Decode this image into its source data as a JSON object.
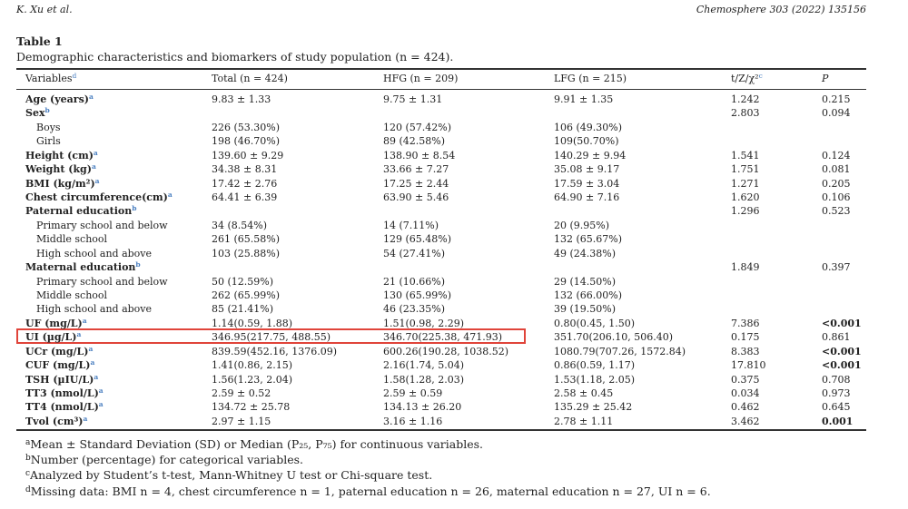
{
  "header": {
    "authors": "K. Xu et al.",
    "journal": "Chemosphere 303 (2022) 135156"
  },
  "table": {
    "title": "Table 1",
    "caption": "Demographic characteristics and biomarkers of study population (n = 424).",
    "columns": [
      {
        "text": "Variables",
        "sup": "d"
      },
      {
        "text": "Total (n = 424)"
      },
      {
        "text": "HFG (n = 209)"
      },
      {
        "text": "LFG (n = 215)"
      },
      {
        "text": "t/Z/χ²",
        "sup": "c"
      },
      {
        "text": "P"
      }
    ],
    "rows": [
      {
        "label": "Age (years)",
        "sup": "a",
        "cells": [
          "9.83 ± 1.33",
          "9.75 ± 1.31",
          "9.91 ± 1.35",
          "1.242",
          "0.215"
        ]
      },
      {
        "label": "Sex",
        "sup": "b",
        "cells": [
          null,
          null,
          null,
          "2.803",
          "0.094"
        ]
      },
      {
        "label": "Boys",
        "cells": [
          "226 (53.30%)",
          "120 (57.42%)",
          "106 (49.30%)",
          null,
          null
        ]
      },
      {
        "label": "Girls",
        "cells": [
          "198 (46.70%)",
          "89 (42.58%)",
          "109(50.70%)",
          null,
          null
        ]
      },
      {
        "label": "Height (cm)",
        "sup": "a",
        "cells": [
          "139.60 ± 9.29",
          "138.90 ± 8.54",
          "140.29 ± 9.94",
          "1.541",
          "0.124"
        ]
      },
      {
        "label": "Weight (kg)",
        "sup": "a",
        "cells": [
          "34.38 ± 8.31",
          "33.66 ± 7.27",
          "35.08 ± 9.17",
          "1.751",
          "0.081"
        ]
      },
      {
        "label": "BMI (kg/m²)",
        "sup": "a",
        "cells": [
          "17.42 ± 2.76",
          "17.25 ± 2.44",
          "17.59 ± 3.04",
          "1.271",
          "0.205"
        ]
      },
      {
        "label": "Chest circumference(cm)",
        "sup": "a",
        "cells": [
          "64.41 ± 6.39",
          "63.90 ± 5.46",
          "64.90 ± 7.16",
          "1.620",
          "0.106"
        ]
      },
      {
        "label": "Paternal education",
        "sup": "b",
        "cells": [
          null,
          null,
          null,
          "1.296",
          "0.523"
        ]
      },
      {
        "label": "Primary school and below",
        "cells": [
          "34 (8.54%)",
          "14 (7.11%)",
          "20 (9.95%)",
          null,
          null
        ]
      },
      {
        "label": "Middle school",
        "cells": [
          "261 (65.58%)",
          "129 (65.48%)",
          "132 (65.67%)",
          null,
          null
        ]
      },
      {
        "label": "High school and above",
        "cells": [
          "103 (25.88%)",
          "54 (27.41%)",
          "49 (24.38%)",
          null,
          null
        ]
      },
      {
        "label": "Maternal education",
        "sup": "b",
        "cells": [
          null,
          null,
          null,
          "1.849",
          "0.397"
        ]
      },
      {
        "label": "Primary school and below",
        "cells": [
          "50 (12.59%)",
          "21 (10.66%)",
          "29 (14.50%)",
          null,
          null
        ]
      },
      {
        "label": "Middle school",
        "cells": [
          "262 (65.99%)",
          "130 (65.99%)",
          "132 (66.00%)",
          null,
          null
        ]
      },
      {
        "label": "High school and above",
        "cells": [
          "85 (21.41%)",
          "46 (23.35%)",
          "39 (19.50%)",
          null,
          null
        ]
      },
      {
        "label": "UF (mg/L)",
        "sup": "a",
        "cells": [
          "1.14(0.59, 1.88)",
          "1.51(0.98, 2.29)",
          "0.80(0.45, 1.50)",
          "7.386",
          "<0.001"
        ]
      },
      {
        "label": "UI (µg/L)",
        "sup": "a",
        "cells": [
          "346.95(217.75, 488.55)",
          "346.70(225.38, 471.93)",
          "351.70(206.10, 506.40)",
          "0.175",
          "0.861"
        ]
      },
      {
        "label": "UCr (mg/L)",
        "sup": "a",
        "cells": [
          "839.59(452.16, 1376.09)",
          "600.26(190.28, 1038.52)",
          "1080.79(707.26, 1572.84)",
          "8.383",
          "<0.001"
        ]
      },
      {
        "label": "CUF (mg/L)",
        "sup": "a",
        "cells": [
          "1.41(0.86, 2.15)",
          "2.16(1.74, 5.04)",
          "0.86(0.59, 1.17)",
          "17.810",
          "<0.001"
        ]
      },
      {
        "label": "TSH (µIU/L)",
        "sup": "a",
        "cells": [
          "1.56(1.23, 2.04)",
          "1.58(1.28, 2.03)",
          "1.53(1.18, 2.05)",
          "0.375",
          "0.708"
        ]
      },
      {
        "label": "TT3 (nmol/L)",
        "sup": "a",
        "cells": [
          "2.59 ± 0.52",
          "2.59 ± 0.59",
          "2.58 ± 0.45",
          "0.034",
          "0.973"
        ]
      },
      {
        "label": "TT4 (nmol/L)",
        "sup": "a",
        "cells": [
          "134.72 ± 25.78",
          "134.13 ± 26.20",
          "135.29 ± 25.42",
          "0.462",
          "0.645"
        ]
      },
      {
        "label": "Tvol (cm³)",
        "sup": "a",
        "cells": [
          "2.97 ± 1.15",
          "3.16 ± 1.16",
          "2.78 ± 1.11",
          "3.462",
          "0.001"
        ]
      }
    ],
    "footnotes": [
      {
        "mark": "a",
        "text": "Mean ± Standard Deviation (SD) or Median (P₂₅, P₇₅) for continuous variables."
      },
      {
        "mark": "b",
        "text": "Number (percentage) for categorical variables."
      },
      {
        "mark": "c",
        "text": "Analyzed by Student’s t-test, Mann-Whitney U test or Chi-square test."
      },
      {
        "mark": "d",
        "text": "Missing data: BMI n = 4, chest circumference n = 1, paternal education n = 26, maternal education n = 27, UI n = 6."
      }
    ]
  }
}
